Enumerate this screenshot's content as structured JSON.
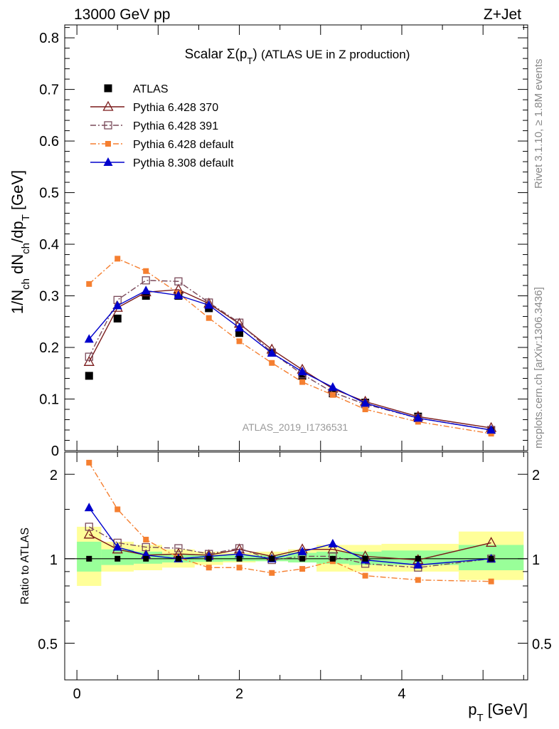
{
  "header": {
    "left": "13000 GeV pp",
    "right": "Z+Jet"
  },
  "side_labels": {
    "rivet": "Rivet 3.1.10, ≥ 1.8M events",
    "mcplots": "mcplots.cern.ch [arXiv:1306.3436]"
  },
  "watermark": "ATLAS_2019_I1736531",
  "chart_data": [
    {
      "type": "line",
      "panel": "main",
      "title": "Scalar Σ(p_T) (ATLAS UE in Z production)",
      "xlabel": "p_T [GeV]",
      "ylabel": "1/N_ch dN_ch/dp_T [GeV]",
      "xlim": [
        -0.15,
        5.55
      ],
      "ylim": [
        0,
        0.825
      ],
      "yticks": [
        0,
        0.1,
        0.2,
        0.3,
        0.4,
        0.5,
        0.6,
        0.7,
        0.8
      ],
      "legend_position": "top-left",
      "grid": false,
      "x": [
        0.15,
        0.5,
        0.85,
        1.25,
        1.625,
        2.0,
        2.4,
        2.775,
        3.15,
        3.55,
        4.2,
        5.1
      ],
      "x_edges": [
        0.0,
        0.3,
        0.7,
        1.05,
        1.45,
        1.8,
        2.2,
        2.6,
        2.95,
        3.35,
        3.75,
        4.7,
        5.5
      ],
      "series": [
        {
          "name": "ATLAS",
          "color": "#000000",
          "marker": "square-filled",
          "line": "none",
          "values": [
            0.145,
            0.256,
            0.3,
            0.3,
            0.276,
            0.228,
            0.19,
            0.145,
            0.111,
            0.093,
            0.066,
            0.04
          ]
        },
        {
          "name": "Pythia 6.428 370",
          "color": "#7a1a1a",
          "marker": "triangle-open",
          "line": "solid",
          "values": [
            0.172,
            0.277,
            0.307,
            0.312,
            0.285,
            0.246,
            0.196,
            0.157,
            0.12,
            0.095,
            0.066,
            0.044
          ]
        },
        {
          "name": "Pythia 6.428 391",
          "color": "#7a4a5a",
          "marker": "square-open",
          "line": "dashdot",
          "values": [
            0.182,
            0.292,
            0.33,
            0.328,
            0.287,
            0.248,
            0.19,
            0.148,
            0.113,
            0.09,
            0.063,
            0.04
          ]
        },
        {
          "name": "Pythia 6.428 default",
          "color": "#f57f30",
          "marker": "square-filled-small",
          "line": "dashdot",
          "values": [
            0.323,
            0.372,
            0.348,
            0.305,
            0.257,
            0.212,
            0.17,
            0.133,
            0.108,
            0.08,
            0.056,
            0.033
          ]
        },
        {
          "name": "Pythia 8.308 default",
          "color": "#0000cc",
          "marker": "triangle-filled",
          "line": "solid",
          "values": [
            0.216,
            0.281,
            0.31,
            0.301,
            0.282,
            0.238,
            0.189,
            0.153,
            0.123,
            0.092,
            0.063,
            0.04
          ]
        }
      ]
    },
    {
      "type": "line",
      "panel": "ratio",
      "xlabel": "p_T [GeV]",
      "ylabel": "Ratio to ATLAS",
      "xlim": [
        -0.15,
        5.55
      ],
      "ylim": [
        0.37,
        2.4
      ],
      "yscale": "log",
      "yticks": [
        0.5,
        1,
        2
      ],
      "xticks": [
        0,
        2,
        4
      ],
      "x": [
        0.15,
        0.5,
        0.85,
        1.25,
        1.625,
        2.0,
        2.4,
        2.775,
        3.15,
        3.55,
        4.2,
        5.1
      ],
      "x_edges": [
        0.0,
        0.3,
        0.7,
        1.05,
        1.45,
        1.8,
        2.2,
        2.6,
        2.95,
        3.35,
        3.75,
        4.7,
        5.5
      ],
      "bands": {
        "yellow": {
          "color": "#ffff99",
          "low": [
            0.8,
            0.9,
            0.91,
            0.93,
            0.95,
            0.97,
            0.98,
            0.97,
            0.9,
            0.9,
            0.9,
            0.84
          ],
          "high": [
            1.3,
            1.15,
            1.12,
            1.08,
            1.06,
            1.05,
            1.06,
            1.08,
            1.12,
            1.12,
            1.13,
            1.25
          ]
        },
        "green": {
          "color": "#99ff99",
          "low": [
            0.9,
            0.95,
            0.96,
            0.97,
            0.975,
            0.98,
            0.98,
            0.97,
            0.96,
            0.95,
            0.95,
            0.91
          ],
          "high": [
            1.15,
            1.08,
            1.06,
            1.04,
            1.03,
            1.03,
            1.03,
            1.05,
            1.06,
            1.06,
            1.07,
            1.12
          ]
        }
      },
      "series": [
        {
          "name": "Pythia 6.428 370",
          "color": "#7a1a1a",
          "marker": "triangle-open",
          "line": "solid",
          "values": [
            1.22,
            1.08,
            1.03,
            1.04,
            1.03,
            1.08,
            1.02,
            1.08,
            1.08,
            1.02,
            0.99,
            1.14
          ]
        },
        {
          "name": "Pythia 6.428 391",
          "color": "#7a4a5a",
          "marker": "square-open",
          "line": "dashdot",
          "values": [
            1.3,
            1.14,
            1.1,
            1.09,
            1.04,
            1.09,
            0.99,
            1.02,
            1.02,
            0.96,
            0.93,
            1.0
          ]
        },
        {
          "name": "Pythia 6.428 default",
          "color": "#f57f30",
          "marker": "square-filled-small",
          "line": "dashdot",
          "values": [
            2.2,
            1.5,
            1.17,
            1.01,
            0.93,
            0.93,
            0.89,
            0.92,
            0.98,
            0.87,
            0.84,
            0.83
          ]
        },
        {
          "name": "Pythia 8.308 default",
          "color": "#0000cc",
          "marker": "triangle-filled",
          "line": "solid",
          "values": [
            1.52,
            1.1,
            1.03,
            1.0,
            1.02,
            1.04,
            1.0,
            1.06,
            1.13,
            0.99,
            0.95,
            1.0
          ]
        }
      ]
    }
  ]
}
